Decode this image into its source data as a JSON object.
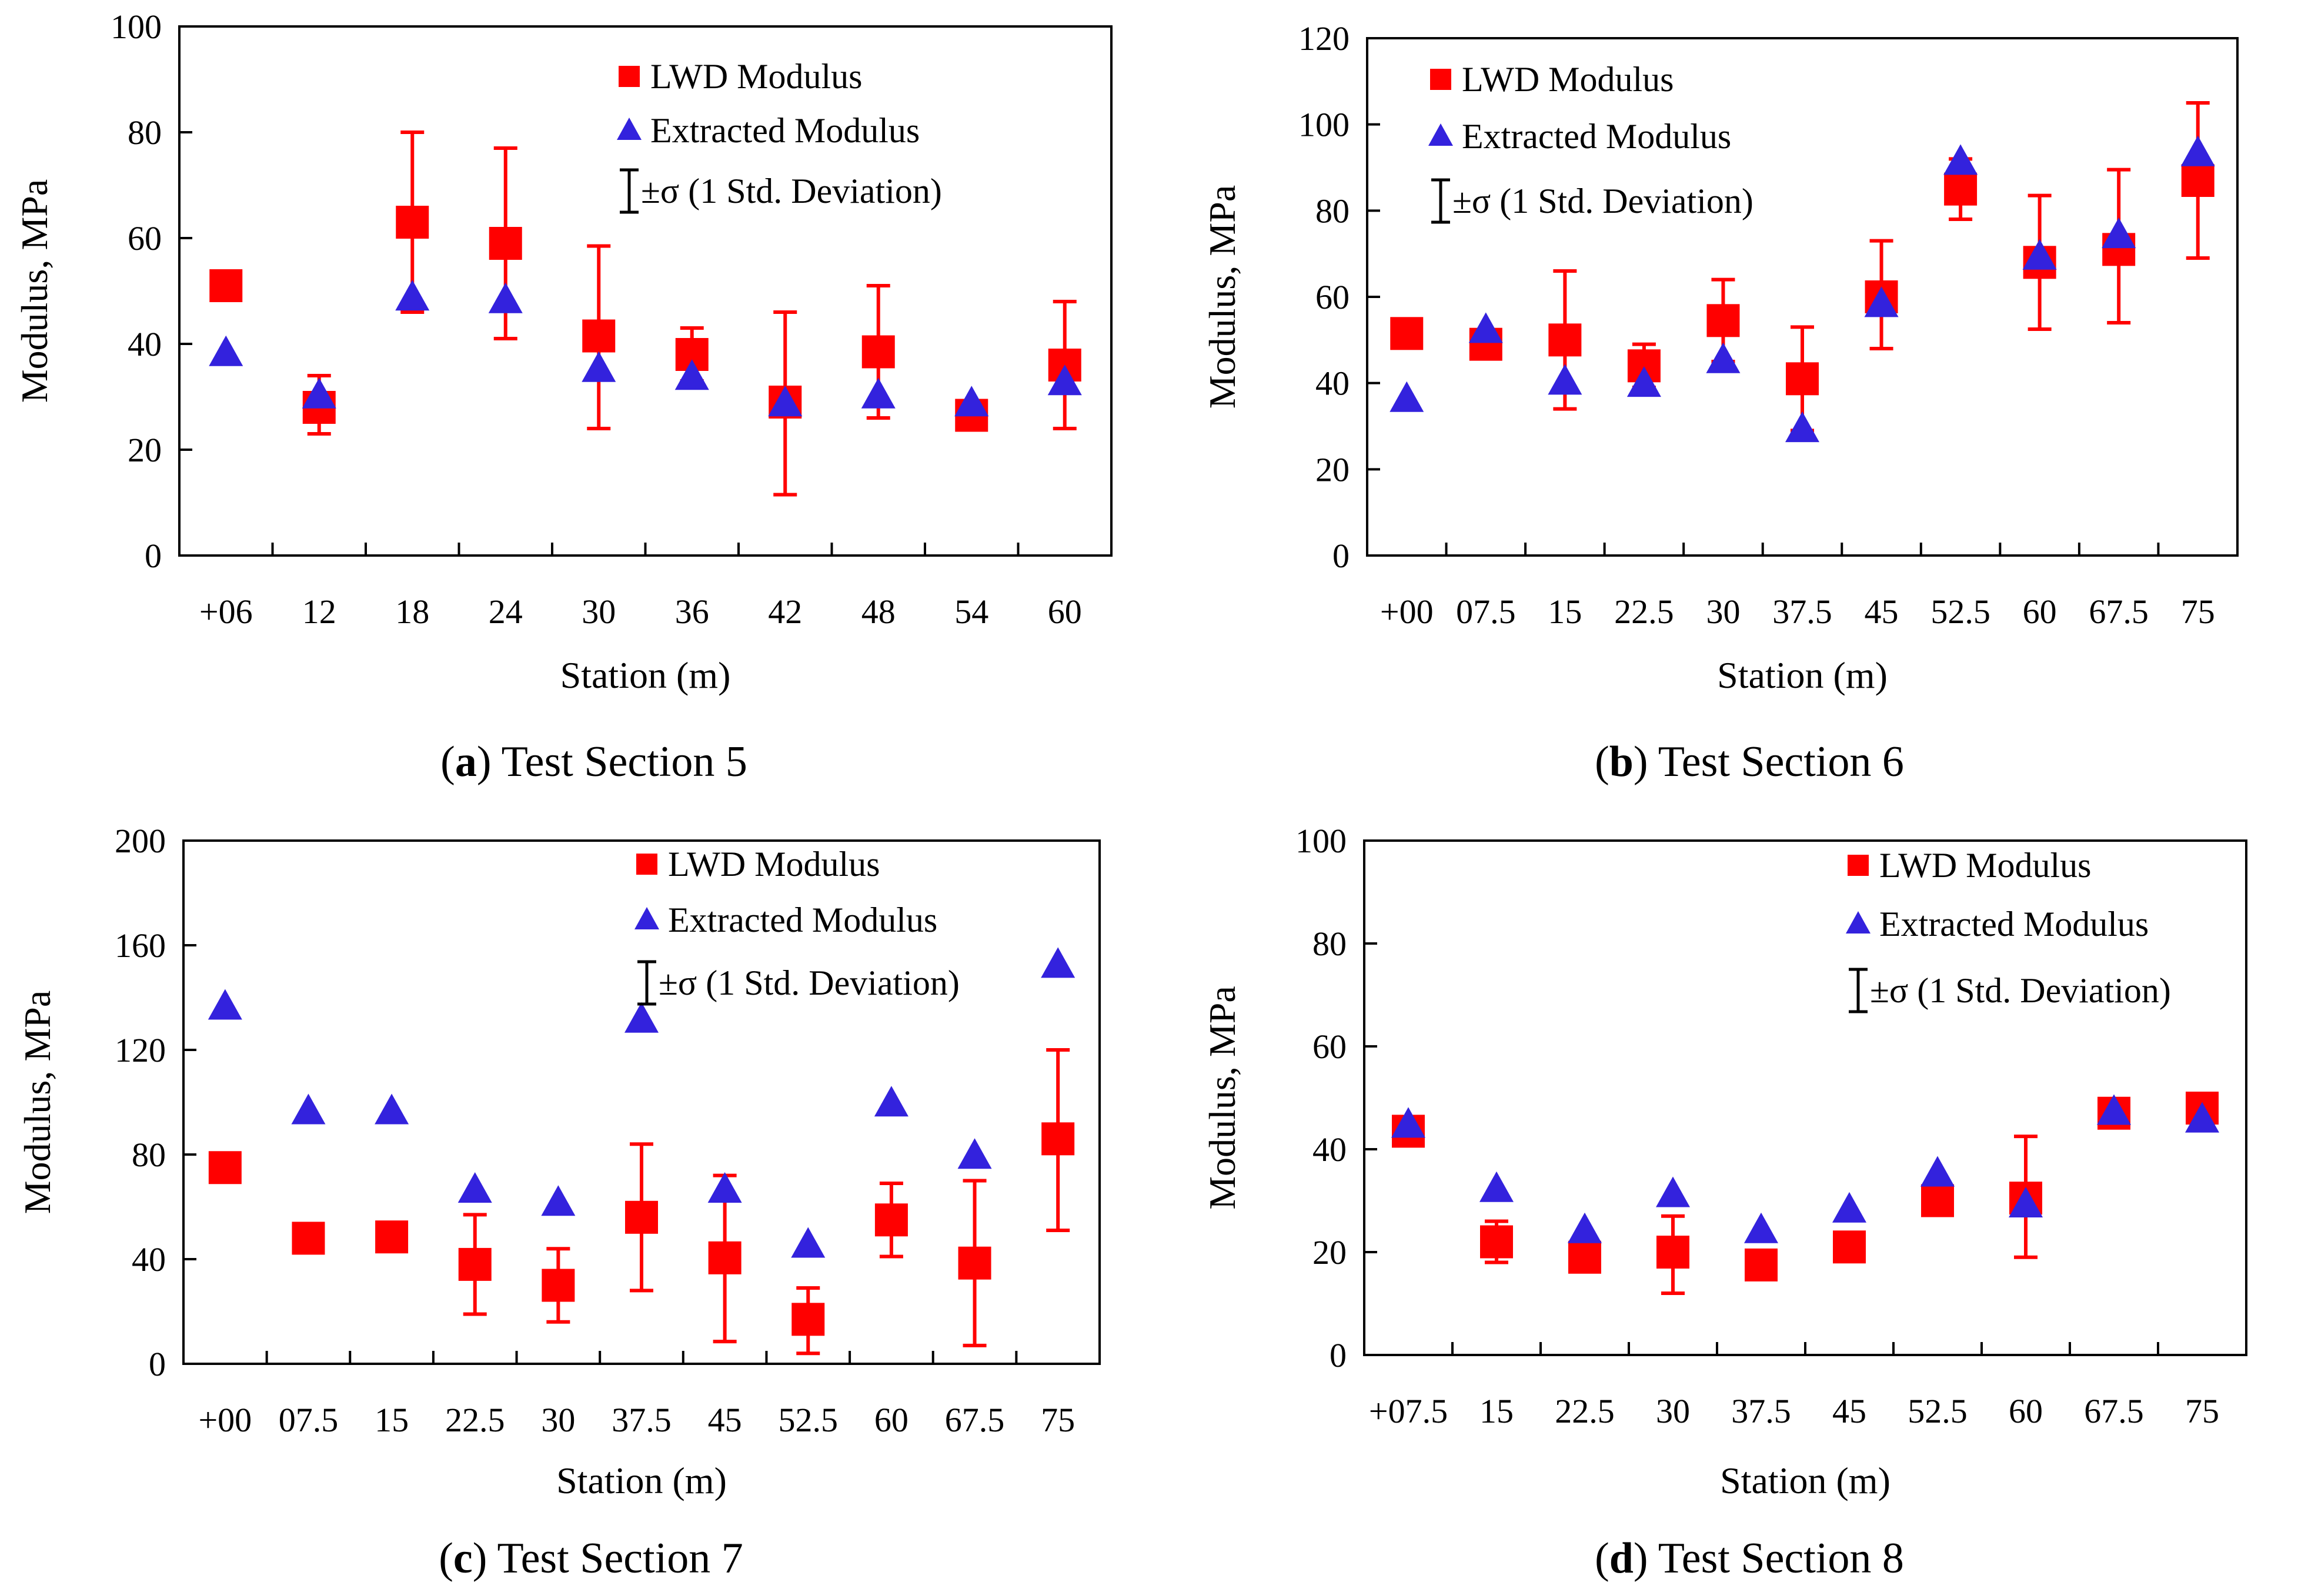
{
  "chart_data": [
    {
      "type": "scatter",
      "caption": {
        "letter": "a",
        "text": ") Test Section 5",
        "open": "("
      },
      "xlabel": "Station (m)",
      "ylabel": "Modulus, MPa",
      "ylim": [
        0,
        100
      ],
      "yticks": [
        "0",
        "20",
        "40",
        "60",
        "80",
        "100"
      ],
      "categories": [
        "+06",
        "12",
        "18",
        "24",
        "30",
        "36",
        "42",
        "48",
        "54",
        "60"
      ],
      "legend": {
        "lwd": "LWD Modulus",
        "extracted": "Extracted Modulus",
        "std": "±σ (1 Std. Deviation)"
      },
      "series": [
        {
          "name": "LWD Modulus",
          "values": [
            51,
            28,
            63,
            59,
            41.5,
            38,
            29,
            38.5,
            26.5,
            36
          ],
          "err_low": [
            51,
            23,
            46,
            41,
            24,
            33,
            11.5,
            26,
            26.5,
            24
          ],
          "err_high": [
            51,
            34,
            80,
            77,
            58.5,
            43,
            46,
            51,
            26.5,
            48
          ]
        },
        {
          "name": "Extracted Modulus",
          "values": [
            38,
            30,
            48.5,
            48,
            35,
            33.5,
            28.5,
            30,
            28.5,
            32.5
          ]
        }
      ]
    },
    {
      "type": "scatter",
      "caption": {
        "letter": "b",
        "text": ") Test Section 6",
        "open": "("
      },
      "xlabel": "Station (m)",
      "ylabel": "Modulus, MPa",
      "ylim": [
        0,
        120
      ],
      "yticks": [
        "0",
        "20",
        "40",
        "60",
        "80",
        "100",
        "120"
      ],
      "categories": [
        "+00",
        "07.5",
        "15",
        "22.5",
        "30",
        "37.5",
        "45",
        "52.5",
        "60",
        "67.5",
        "75"
      ],
      "legend": {
        "lwd": "LWD Modulus",
        "extracted": "Extracted Modulus",
        "std": "±σ (1 Std. Deviation)"
      },
      "series": [
        {
          "name": "LWD Modulus",
          "values": [
            51.5,
            49,
            50,
            44,
            54.5,
            41,
            60,
            85,
            68,
            71,
            87
          ],
          "err_low": [
            51.5,
            49,
            34,
            39,
            45,
            29,
            48,
            78,
            52.5,
            54,
            69
          ],
          "err_high": [
            51.5,
            49,
            66,
            49,
            64,
            53,
            73,
            92,
            83.5,
            89.5,
            105
          ]
        },
        {
          "name": "Extracted Modulus",
          "values": [
            36,
            52,
            40,
            39.5,
            45,
            29,
            58,
            91,
            69,
            74,
            93
          ]
        }
      ]
    },
    {
      "type": "scatter",
      "caption": {
        "letter": "c",
        "text": ") Test Section 7",
        "open": "("
      },
      "xlabel": "Station (m)",
      "ylabel": "Modulus, MPa",
      "ylim": [
        0,
        200
      ],
      "yticks": [
        "0",
        "40",
        "80",
        "120",
        "160",
        "200"
      ],
      "categories": [
        "+00",
        "07.5",
        "15",
        "22.5",
        "30",
        "37.5",
        "45",
        "52.5",
        "60",
        "67.5",
        "75"
      ],
      "legend": {
        "lwd": "LWD Modulus",
        "extracted": "Extracted Modulus",
        "std": "±σ (1 Std. Deviation)"
      },
      "series": [
        {
          "name": "LWD Modulus",
          "values": [
            75,
            48,
            48.5,
            38,
            30,
            56,
            40.5,
            17,
            55,
            38.5,
            86
          ],
          "err_low": [
            75,
            48,
            48.5,
            19,
            16,
            28,
            8.5,
            4,
            41,
            7,
            51
          ],
          "err_high": [
            75,
            48,
            48.5,
            57,
            44,
            84,
            72,
            29,
            69,
            70,
            120
          ]
        },
        {
          "name": "Extracted Modulus",
          "values": [
            136,
            96,
            96,
            66,
            61,
            131,
            66,
            45,
            99,
            79,
            152
          ]
        }
      ]
    },
    {
      "type": "scatter",
      "caption": {
        "letter": "d",
        "text": ") Test Section 8",
        "open": "("
      },
      "xlabel": "Station (m)",
      "ylabel": "Modulus, MPa",
      "ylim": [
        0,
        100
      ],
      "yticks": [
        "0",
        "20",
        "40",
        "60",
        "80",
        "100"
      ],
      "categories": [
        "+07.5",
        "15",
        "22.5",
        "30",
        "37.5",
        "45",
        "52.5",
        "60",
        "67.5",
        "75"
      ],
      "legend": {
        "lwd": "LWD Modulus",
        "extracted": "Extracted Modulus",
        "std": "±σ (1 Std. Deviation)"
      },
      "series": [
        {
          "name": "LWD Modulus",
          "values": [
            43.5,
            22,
            19,
            20,
            17.5,
            21,
            30,
            30.5,
            47,
            48
          ],
          "err_low": [
            43.5,
            18,
            19,
            12,
            17.5,
            21,
            30,
            19,
            47,
            48
          ],
          "err_high": [
            43.5,
            26,
            19,
            27,
            17.5,
            21,
            30,
            42.5,
            47,
            48
          ]
        },
        {
          "name": "Extracted Modulus",
          "values": [
            44.5,
            32,
            24,
            31,
            24,
            28,
            35,
            29,
            47,
            45.5
          ]
        }
      ]
    }
  ]
}
